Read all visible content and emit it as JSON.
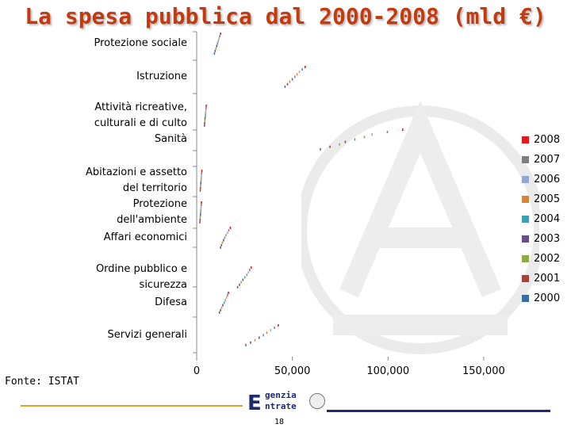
{
  "page": {
    "title": "La spesa pubblica dal 2000-2008 (mld €)",
    "source": "Fonte: ISTAT",
    "page_number": "18",
    "logo_text_top": "genzia",
    "logo_text_bottom": "ntrate",
    "logo_letter": "E"
  },
  "colors": {
    "title": "#c23a10",
    "footer_line_left": "#e0a020",
    "footer_line_right": "#1e2a6e"
  },
  "chart_data": {
    "type": "bar",
    "orientation": "horizontal",
    "categories": [
      "Protezione sociale",
      "Istruzione",
      "Attività ricreative, culturali e di culto",
      "Sanità",
      "Abitazioni e assetto del territorio",
      "Protezione dell'ambiente",
      "Affari economici",
      "Ordine pubblico e sicurezza",
      "Difesa",
      "Servizi generali"
    ],
    "category_labels": [
      [
        "Protezione sociale"
      ],
      [
        "Istruzione"
      ],
      [
        "Attività ricreative,",
        "culturali e di culto"
      ],
      [
        "Sanità"
      ],
      [
        "Abitazioni e assetto",
        "del territorio"
      ],
      [
        "Protezione",
        "dell'ambiente"
      ],
      [
        "Affari economici"
      ],
      [
        "Ordine pubblico e",
        "sicurezza"
      ],
      [
        "Difesa"
      ],
      [
        "Servizi generali"
      ]
    ],
    "series": [
      {
        "name": "2000",
        "color": "#3b6ea8",
        "values": [
          9600,
          46500,
          4400,
          65000,
          2200,
          2000,
          12800,
          21700,
          12200,
          26000
        ]
      },
      {
        "name": "2001",
        "color": "#a8403b",
        "values": [
          10000,
          47800,
          4500,
          70000,
          2300,
          2100,
          13300,
          22700,
          12800,
          28500
        ]
      },
      {
        "name": "2002",
        "color": "#8cab45",
        "values": [
          10400,
          49000,
          4600,
          75000,
          2400,
          2200,
          13800,
          23600,
          13400,
          30800
        ]
      },
      {
        "name": "2003",
        "color": "#6a4b8f",
        "values": [
          10800,
          50300,
          4700,
          78000,
          2500,
          2300,
          14400,
          24500,
          14000,
          33000
        ]
      },
      {
        "name": "2004",
        "color": "#3fa0b5",
        "values": [
          11200,
          51600,
          4900,
          83000,
          2600,
          2400,
          15000,
          25500,
          14700,
          35200
        ]
      },
      {
        "name": "2005",
        "color": "#d9843b",
        "values": [
          11600,
          52800,
          5000,
          88000,
          2700,
          2500,
          15700,
          26500,
          15300,
          37000
        ]
      },
      {
        "name": "2006",
        "color": "#8fa9d4",
        "values": [
          12000,
          54000,
          5100,
          92000,
          2800,
          2600,
          16400,
          27300,
          15900,
          39000
        ]
      },
      {
        "name": "2007",
        "color": "#7f7f7f",
        "values": [
          12400,
          55500,
          5200,
          100000,
          2900,
          2700,
          17100,
          28000,
          16400,
          41000
        ]
      },
      {
        "name": "2008",
        "color": "#e41a1c",
        "values": [
          12800,
          57000,
          5300,
          108000,
          3000,
          2800,
          17900,
          28800,
          16900,
          43000
        ]
      }
    ],
    "xlim": [
      0,
      160000
    ],
    "x_ticks": [
      0,
      50000,
      100000,
      150000
    ],
    "x_tick_labels": [
      "0",
      "50,000",
      "100,000",
      "150,000"
    ],
    "legend": [
      "2008",
      "2007",
      "2006",
      "2005",
      "2004",
      "2003",
      "2002",
      "2001",
      "2000"
    ],
    "legend_position": "right",
    "grid": false
  }
}
